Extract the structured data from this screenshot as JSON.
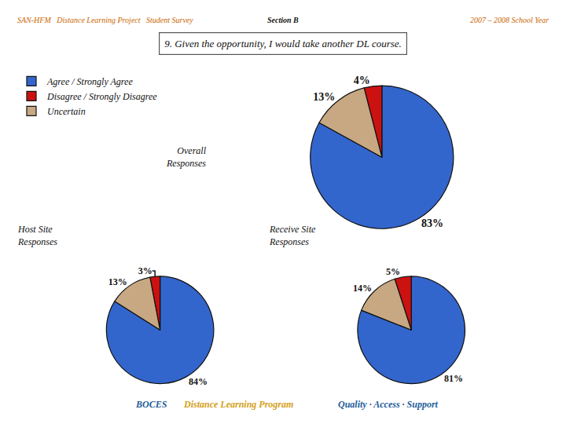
{
  "chart_data": [
    {
      "type": "pie",
      "title": "Overall\nResponses",
      "categories": [
        "Agree / Strongly Agree",
        "Disagree / Strongly Disagree",
        "Uncertain"
      ],
      "values": [
        83,
        4,
        13
      ],
      "value_labels": [
        "83%",
        "4%",
        "13%"
      ],
      "colors": [
        "#3366cc",
        "#cc1111",
        "#c8a882"
      ],
      "legend": "upper left",
      "annotations": [
        {
          "text": "SAN-HFM   Distance Learning Project   Student Survey",
          "color": "#cc6600"
        },
        {
          "text": "Section B",
          "color": "#111111"
        },
        {
          "text": "2007 – 2008 School Year",
          "color": "#cc6600"
        },
        {
          "text": "9. Given the opportunity, I would take another DL course.",
          "color": "#111111"
        },
        {
          "text": "BOCES",
          "color": "#1f5c99"
        },
        {
          "text": "Distance Learning Program",
          "color": "#d4a020"
        },
        {
          "text": "Quality · Access · Support",
          "color": "#1f5c99"
        }
      ]
    },
    {
      "type": "pie",
      "title": "Host Site\nResponses",
      "categories": [
        "Agree / Strongly Agree",
        "Disagree / Strongly Disagree",
        "Uncertain"
      ],
      "values": [
        84,
        3,
        13
      ],
      "value_labels": [
        "84%",
        "3%",
        "13%"
      ],
      "colors": [
        "#3366cc",
        "#cc1111",
        "#c8a882"
      ]
    },
    {
      "type": "pie",
      "title": "Receive Site\nResponses",
      "categories": [
        "Agree / Strongly Agree",
        "Disagree / Strongly Disagree",
        "Uncertain"
      ],
      "values": [
        81,
        5,
        14
      ],
      "value_labels": [
        "81%",
        "5%",
        "14%"
      ],
      "colors": [
        "#3366cc",
        "#cc1111",
        "#c8a882"
      ]
    }
  ]
}
